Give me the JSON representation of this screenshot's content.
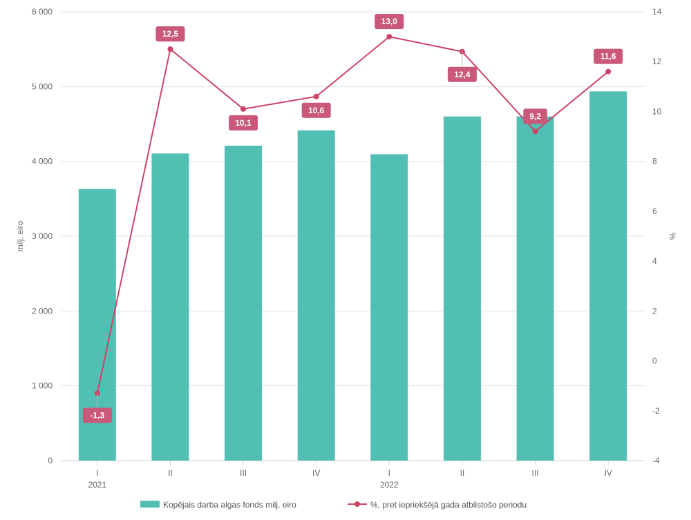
{
  "chart_data": {
    "type": "bar",
    "categories": [
      "I",
      "II",
      "III",
      "IV",
      "I",
      "II",
      "III",
      "IV"
    ],
    "year_labels": [
      "2021",
      "",
      "",
      "",
      "2022",
      "",
      "",
      ""
    ],
    "series": [
      {
        "name": "Kopējais darba algas fonds milj. eiro",
        "type": "bar",
        "axis": "left",
        "color": "#52bfb4",
        "values": [
          3630,
          4105,
          4210,
          4415,
          4095,
          4600,
          4600,
          4935
        ]
      },
      {
        "name": "%, pret iepriekšējā gada atbilstošo periodu",
        "type": "line",
        "axis": "right",
        "color": "#cc4466",
        "values": [
          -1.3,
          12.5,
          10.1,
          10.6,
          13.0,
          12.4,
          9.2,
          11.6
        ],
        "data_labels": [
          "-1,3",
          "12,5",
          "10,1",
          "10,6",
          "13,0",
          "12,4",
          "9,2",
          "11,6"
        ]
      }
    ],
    "ylabel": "milj. eiro",
    "y2label": "%",
    "ylim": [
      0,
      6000
    ],
    "y2lim": [
      -4,
      14
    ],
    "yticks": [
      0,
      1000,
      2000,
      3000,
      4000,
      5000,
      6000
    ],
    "ytick_labels": [
      "0",
      "1 000",
      "2 000",
      "3 000",
      "4 000",
      "5 000",
      "6 000"
    ],
    "y2ticks": [
      -4,
      -2,
      0,
      2,
      4,
      6,
      8,
      10,
      12,
      14
    ],
    "y2tick_labels": [
      "-4",
      "-2",
      "0",
      "2",
      "4",
      "6",
      "8",
      "10",
      "12",
      "14"
    ],
    "grid": true,
    "legend_position": "bottom",
    "label_color": "#c9587a"
  }
}
